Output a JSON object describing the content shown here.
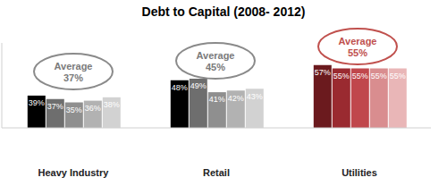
{
  "chart_data": {
    "type": "bar",
    "title": "Debt to Capital  (2008- 2012)",
    "categories": [
      "Heavy Industry",
      "Retail",
      "Utilities"
    ],
    "series": [
      {
        "colors": [
          "#000000",
          "#000000",
          "#6b1a1e"
        ],
        "values": [
          39,
          48,
          57
        ],
        "value_labels": [
          "39%",
          "48%",
          "57%"
        ]
      },
      {
        "colors": [
          "#6e6e6e",
          "#6e6e6e",
          "#9a2a30"
        ],
        "values": [
          37,
          49,
          55
        ],
        "value_labels": [
          "37%",
          "49%",
          "55%"
        ]
      },
      {
        "colors": [
          "#8f8f8f",
          "#8f8f8f",
          "#c0474c"
        ],
        "values": [
          35,
          41,
          55
        ],
        "value_labels": [
          "35%",
          "41%",
          "55%"
        ]
      },
      {
        "colors": [
          "#b2b2b2",
          "#b2b2b2",
          "#d98d8f"
        ],
        "values": [
          36,
          42,
          55
        ],
        "value_labels": [
          "36%",
          "42%",
          "55%"
        ]
      },
      {
        "colors": [
          "#d2d2d2",
          "#d2d2d2",
          "#e9b6b7"
        ],
        "values": [
          38,
          43,
          55
        ],
        "value_labels": [
          "38%",
          "43%",
          "55%"
        ]
      }
    ],
    "ylim": [
      20,
      70
    ],
    "data_labels": true,
    "tick_labels": "x",
    "annotations": [
      "Average\n37%",
      "Average\n45%",
      "Average\n55%"
    ]
  }
}
